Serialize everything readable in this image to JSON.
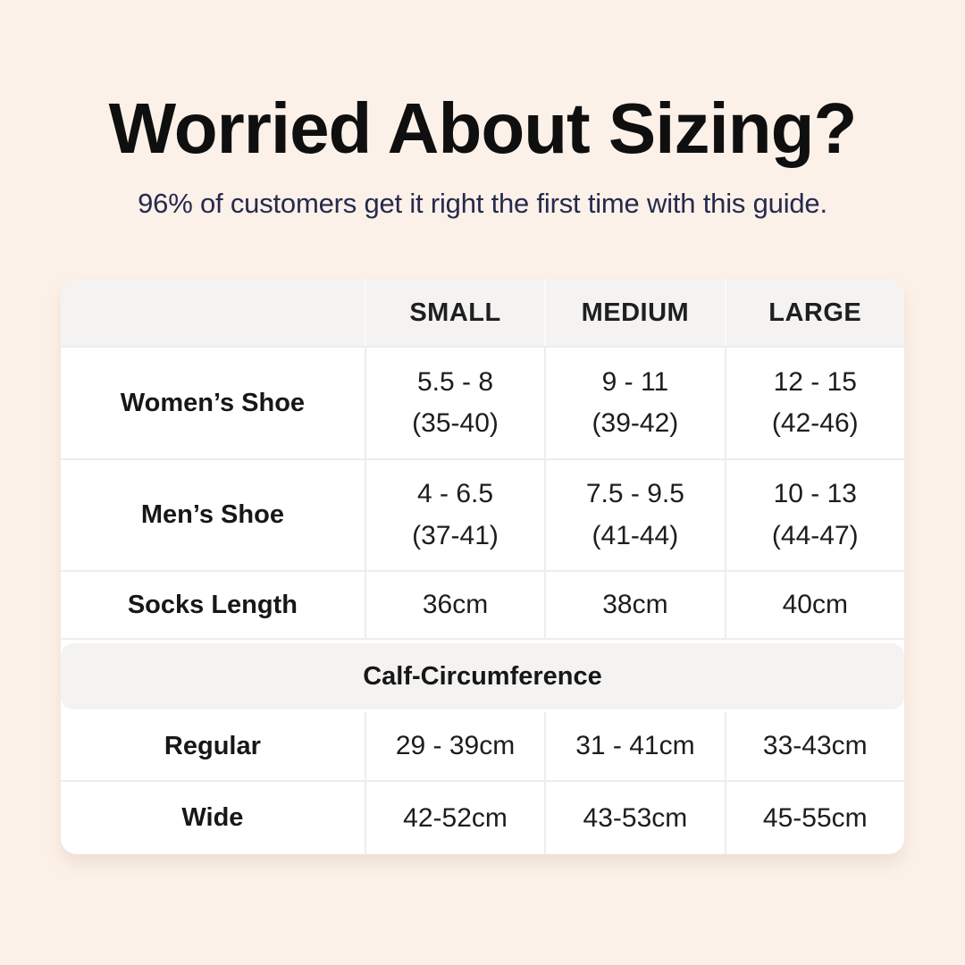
{
  "page": {
    "title": "Worried About Sizing?",
    "subtitle": "96% of customers get it right the first time with this guide."
  },
  "colors": {
    "background": "#fcf1e8",
    "title_text": "#0f0f0f",
    "subtitle_text": "#262a4d",
    "table_background": "#ffffff",
    "header_band_background": "#f4f3f2",
    "divider": "#ededec",
    "cell_text": "#1d1d1d"
  },
  "table": {
    "headers": [
      "SMALL",
      "MEDIUM",
      "LARGE"
    ],
    "rows": [
      {
        "label": "Women’s Shoe",
        "cells": [
          {
            "line1": "5.5 - 8",
            "line2": "(35-40)"
          },
          {
            "line1": "9 - 11",
            "line2": "(39-42)"
          },
          {
            "line1": "12 - 15",
            "line2": "(42-46)"
          }
        ]
      },
      {
        "label": "Men’s Shoe",
        "cells": [
          {
            "line1": "4 - 6.5",
            "line2": "(37-41)"
          },
          {
            "line1": "7.5 - 9.5",
            "line2": "(41-44)"
          },
          {
            "line1": "10 - 13",
            "line2": "(44-47)"
          }
        ]
      },
      {
        "label": "Socks Length",
        "cells": [
          "36cm",
          "38cm",
          "40cm"
        ]
      }
    ],
    "section": {
      "title": "Calf-Circumference",
      "rows": [
        {
          "label": "Regular",
          "cells": [
            "29 - 39cm",
            "31 - 41cm",
            "33-43cm"
          ]
        },
        {
          "label": "Wide",
          "cells": [
            "42-52cm",
            "43-53cm",
            "45-55cm"
          ]
        }
      ]
    }
  },
  "chart_data": {
    "type": "table",
    "title": "Worried About Sizing?",
    "subtitle": "96% of customers get it right the first time with this guide.",
    "columns": [
      "",
      "SMALL",
      "MEDIUM",
      "LARGE"
    ],
    "rows": [
      [
        "Women’s Shoe",
        "5.5 - 8 (35-40)",
        "9 - 11 (39-42)",
        "12 - 15 (42-46)"
      ],
      [
        "Men’s Shoe",
        "4 - 6.5 (37-41)",
        "7.5 - 9.5 (41-44)",
        "10 - 13 (44-47)"
      ],
      [
        "Socks Length",
        "36cm",
        "38cm",
        "40cm"
      ],
      [
        "Calf-Circumference",
        "",
        "",
        ""
      ],
      [
        "Regular",
        "29 - 39cm",
        "31 - 41cm",
        "33-43cm"
      ],
      [
        "Wide",
        "42-52cm",
        "43-53cm",
        "45-55cm"
      ]
    ],
    "layout": {
      "section_header_row_index": 3,
      "grid": true,
      "header_background": "#f4f3f2"
    }
  }
}
